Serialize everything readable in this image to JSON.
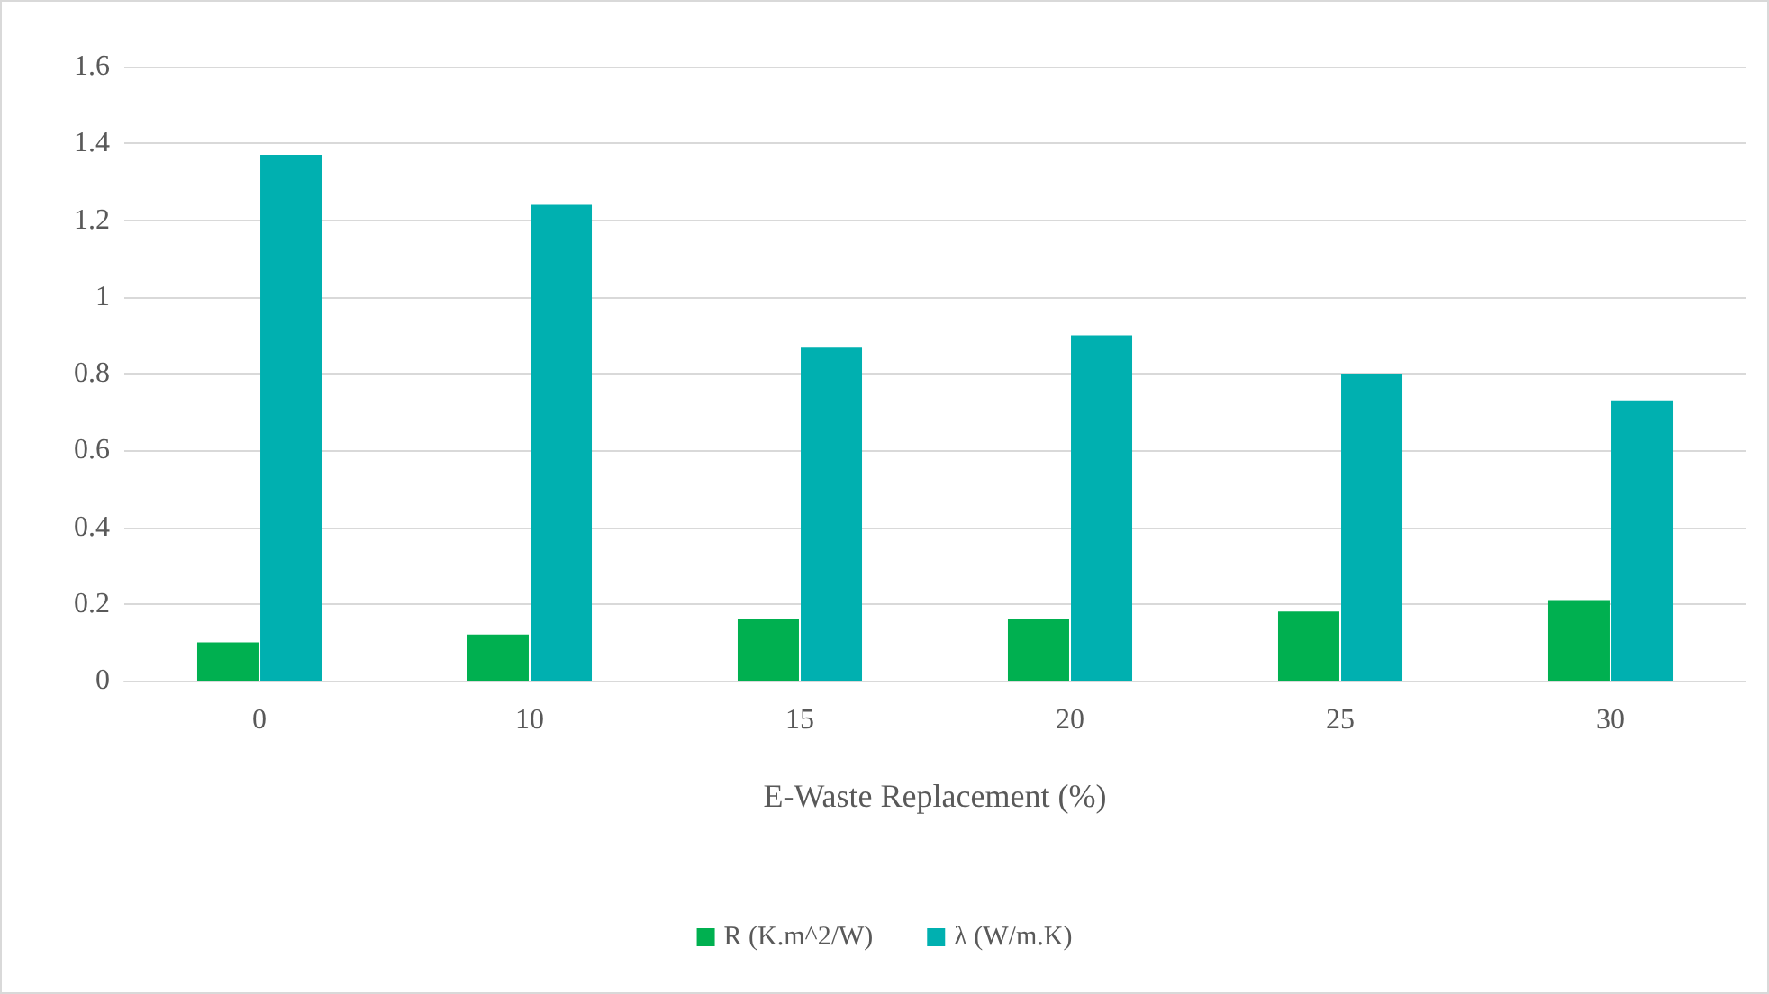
{
  "chart_data": {
    "type": "bar",
    "xlabel": "E-Waste Replacement (%)",
    "categories": [
      "0",
      "10",
      "15",
      "20",
      "25",
      "30"
    ],
    "series": [
      {
        "name": "R (K.m^2/W)",
        "color": "#00b050",
        "values": [
          0.1,
          0.12,
          0.16,
          0.16,
          0.18,
          0.21
        ]
      },
      {
        "name": "λ (W/m.K)",
        "color": "#00b0b0",
        "values": [
          1.37,
          1.24,
          0.87,
          0.9,
          0.8,
          0.73
        ]
      }
    ],
    "ylim": [
      0,
      1.6
    ],
    "yticks": [
      0,
      0.2,
      0.4,
      0.6,
      0.8,
      1,
      1.2,
      1.4,
      1.6
    ],
    "grid": "y",
    "legend": "bottom"
  }
}
